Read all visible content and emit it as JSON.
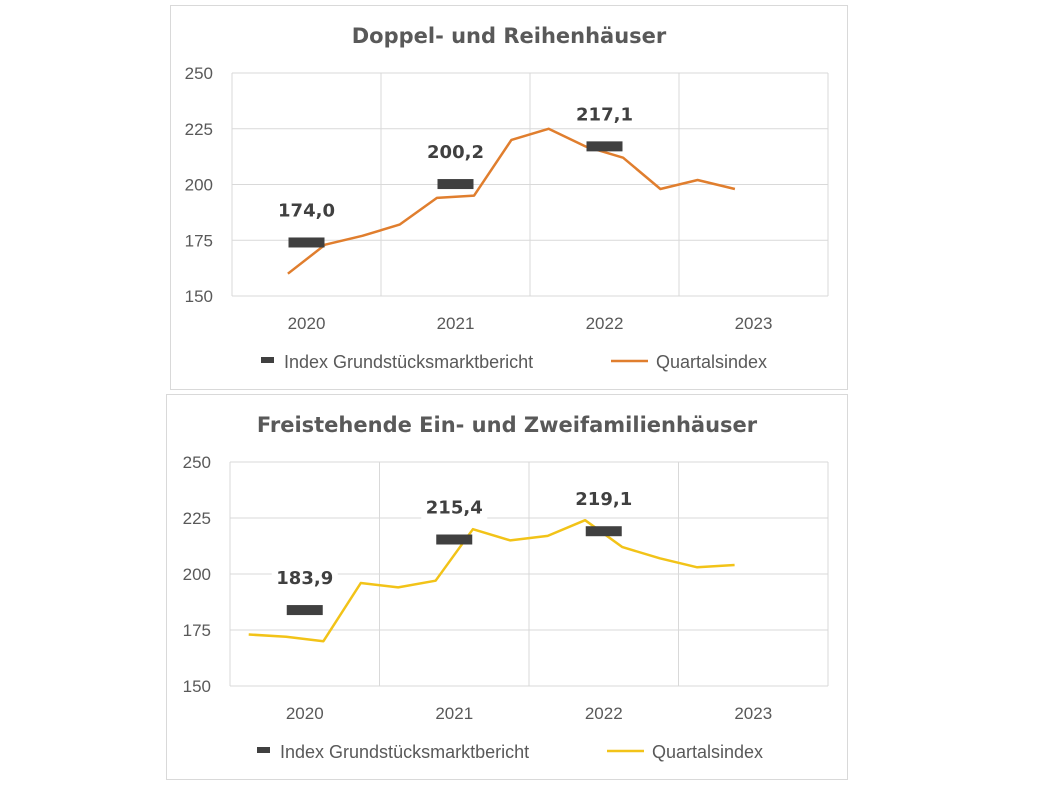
{
  "chart_data": [
    {
      "type": "line",
      "title": "Doppel- und Reihenhäuser",
      "categories": [
        "2020",
        "2021",
        "2022",
        "2023"
      ],
      "ylim": [
        150,
        250
      ],
      "yticks": [
        "150",
        "175",
        "200",
        "225",
        "250"
      ],
      "grid": true,
      "legend_position": "bottom",
      "series": [
        {
          "name": "Index Grundstücksmarktbericht",
          "kind": "marker",
          "color": "#404040",
          "points": [
            {
              "x": 2020,
              "y": 174.0,
              "label": "174,0"
            },
            {
              "x": 2021,
              "y": 200.2,
              "label": "200,2"
            },
            {
              "x": 2022,
              "y": 217.1,
              "label": "217,1"
            }
          ]
        },
        {
          "name": "Quartalsindex",
          "kind": "line",
          "color": "#E07E2E",
          "x": [
            2019.875,
            2020.125,
            2020.375,
            2020.625,
            2020.875,
            2021.125,
            2021.375,
            2021.625,
            2021.875,
            2022.125,
            2022.375,
            2022.625,
            2022.875
          ],
          "y": [
            160,
            173,
            177,
            182,
            194,
            195,
            220,
            225,
            217,
            212,
            198,
            202,
            198
          ]
        }
      ]
    },
    {
      "type": "line",
      "title": "Freistehende Ein- und Zweifamilienhäuser",
      "categories": [
        "2020",
        "2021",
        "2022",
        "2023"
      ],
      "ylim": [
        150,
        250
      ],
      "yticks": [
        "150",
        "175",
        "200",
        "225",
        "250"
      ],
      "grid": true,
      "legend_position": "bottom",
      "series": [
        {
          "name": "Index Grundstücksmarktbericht",
          "kind": "marker",
          "color": "#404040",
          "points": [
            {
              "x": 2020,
              "y": 183.9,
              "label": "183,9"
            },
            {
              "x": 2021,
              "y": 215.4,
              "label": "215,4"
            },
            {
              "x": 2022,
              "y": 219.1,
              "label": "219,1"
            }
          ]
        },
        {
          "name": "Quartalsindex",
          "kind": "line",
          "color": "#F2C318",
          "x": [
            2019.625,
            2019.875,
            2020.125,
            2020.375,
            2020.625,
            2020.875,
            2021.125,
            2021.375,
            2021.625,
            2021.875,
            2022.125,
            2022.375,
            2022.625,
            2022.875
          ],
          "y": [
            173,
            172,
            170,
            196,
            194,
            197,
            220,
            215,
            217,
            224,
            212,
            207,
            203,
            204
          ]
        }
      ]
    }
  ]
}
